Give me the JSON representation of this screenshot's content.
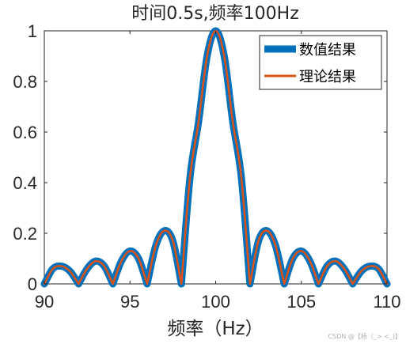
{
  "chart_data": {
    "type": "line",
    "title": "时间0.5s,频率100Hz",
    "xlabel": "频率（Hz）",
    "ylabel": "",
    "xlim": [
      90,
      110
    ],
    "ylim": [
      0,
      1
    ],
    "xticks": [
      90,
      95,
      100,
      105,
      110
    ],
    "xtick_labels": [
      "90",
      "95",
      "100",
      "105",
      "110"
    ],
    "yticks": [
      0,
      0.2,
      0.4,
      0.6,
      0.8,
      1
    ],
    "ytick_labels": [
      "0",
      "0.2",
      "0.4",
      "0.6",
      "0.8",
      "1"
    ],
    "grid": false,
    "legend_position": "top-right",
    "series": [
      {
        "name": "数值结果",
        "color": "#0072BD",
        "style": "thick",
        "x": [
          90,
          90.5,
          91,
          91.5,
          92,
          92.5,
          93,
          93.5,
          94,
          94.5,
          95,
          95.5,
          96,
          96.5,
          97,
          97.5,
          98,
          98.5,
          99,
          99.5,
          100,
          100.5,
          101,
          101.5,
          102,
          102.5,
          103,
          103.5,
          104,
          104.5,
          105,
          105.5,
          106,
          106.5,
          107,
          107.5,
          108,
          108.5,
          109,
          109.5,
          110
        ],
        "y": [
          0,
          0.06,
          0.07,
          0.05,
          0,
          0.06,
          0.09,
          0.07,
          0,
          0.09,
          0.13,
          0.1,
          0,
          0.15,
          0.21,
          0.17,
          0,
          0.42,
          0.64,
          0.9,
          1,
          0.9,
          0.64,
          0.42,
          0,
          0.17,
          0.21,
          0.15,
          0,
          0.1,
          0.13,
          0.09,
          0,
          0.07,
          0.09,
          0.06,
          0,
          0.05,
          0.07,
          0.06,
          0
        ]
      },
      {
        "name": "理论结果",
        "color": "#D95319",
        "style": "thin",
        "x": [
          90,
          90.5,
          91,
          91.5,
          92,
          92.5,
          93,
          93.5,
          94,
          94.5,
          95,
          95.5,
          96,
          96.5,
          97,
          97.5,
          98,
          98.5,
          99,
          99.5,
          100,
          100.5,
          101,
          101.5,
          102,
          102.5,
          103,
          103.5,
          104,
          104.5,
          105,
          105.5,
          106,
          106.5,
          107,
          107.5,
          108,
          108.5,
          109,
          109.5,
          110
        ],
        "y": [
          0,
          0.06,
          0.07,
          0.05,
          0,
          0.06,
          0.09,
          0.07,
          0,
          0.09,
          0.13,
          0.1,
          0,
          0.15,
          0.21,
          0.17,
          0,
          0.42,
          0.64,
          0.9,
          1,
          0.9,
          0.64,
          0.42,
          0,
          0.17,
          0.21,
          0.15,
          0,
          0.1,
          0.13,
          0.09,
          0,
          0.07,
          0.09,
          0.06,
          0,
          0.05,
          0.07,
          0.06,
          0
        ]
      }
    ]
  },
  "watermark": "CSDN @【杨（_> <_)】"
}
